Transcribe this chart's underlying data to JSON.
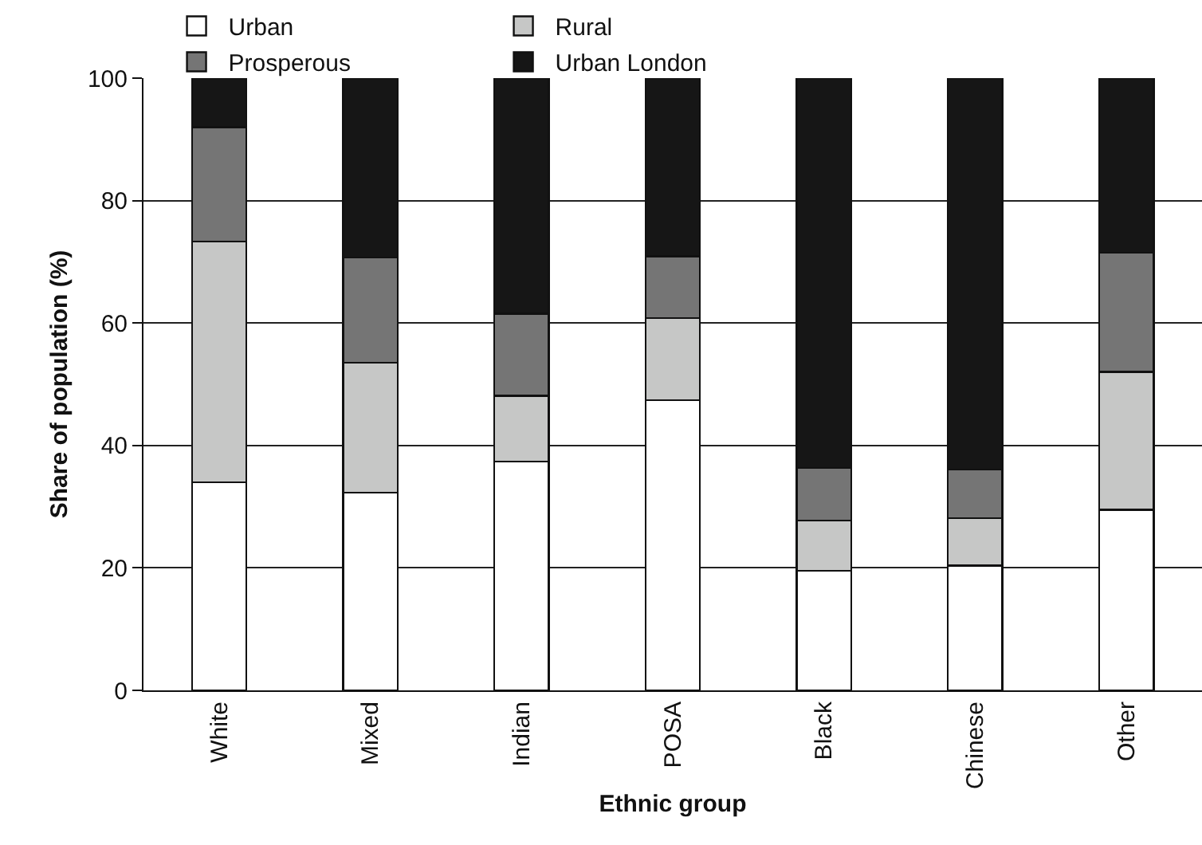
{
  "chart_data": {
    "type": "bar",
    "stacked": true,
    "xlabel": "Ethnic group",
    "ylabel": "Share of population (%)",
    "categories": [
      "White",
      "Mixed",
      "Indian",
      "POSA",
      "Black",
      "Chinese",
      "Other"
    ],
    "series": [
      {
        "name": "Urban",
        "color": "#ffffff",
        "values": [
          34.0,
          32.3,
          37.4,
          47.4,
          19.5,
          20.4,
          29.5
        ]
      },
      {
        "name": "Rural",
        "color": "#c6c7c6",
        "values": [
          39.3,
          21.2,
          10.7,
          13.4,
          8.2,
          7.7,
          22.5
        ]
      },
      {
        "name": "Prosperous",
        "color": "#757575",
        "values": [
          18.7,
          17.2,
          13.4,
          10.1,
          8.6,
          8.0,
          19.5
        ]
      },
      {
        "name": "Urban London",
        "color": "#161616",
        "values": [
          8.0,
          29.3,
          38.5,
          29.1,
          63.7,
          63.9,
          28.5
        ]
      }
    ],
    "ylim": [
      0,
      100
    ],
    "yticks": [
      0,
      20,
      40,
      60,
      80,
      100
    ],
    "grid": "y",
    "legend": "top left"
  }
}
